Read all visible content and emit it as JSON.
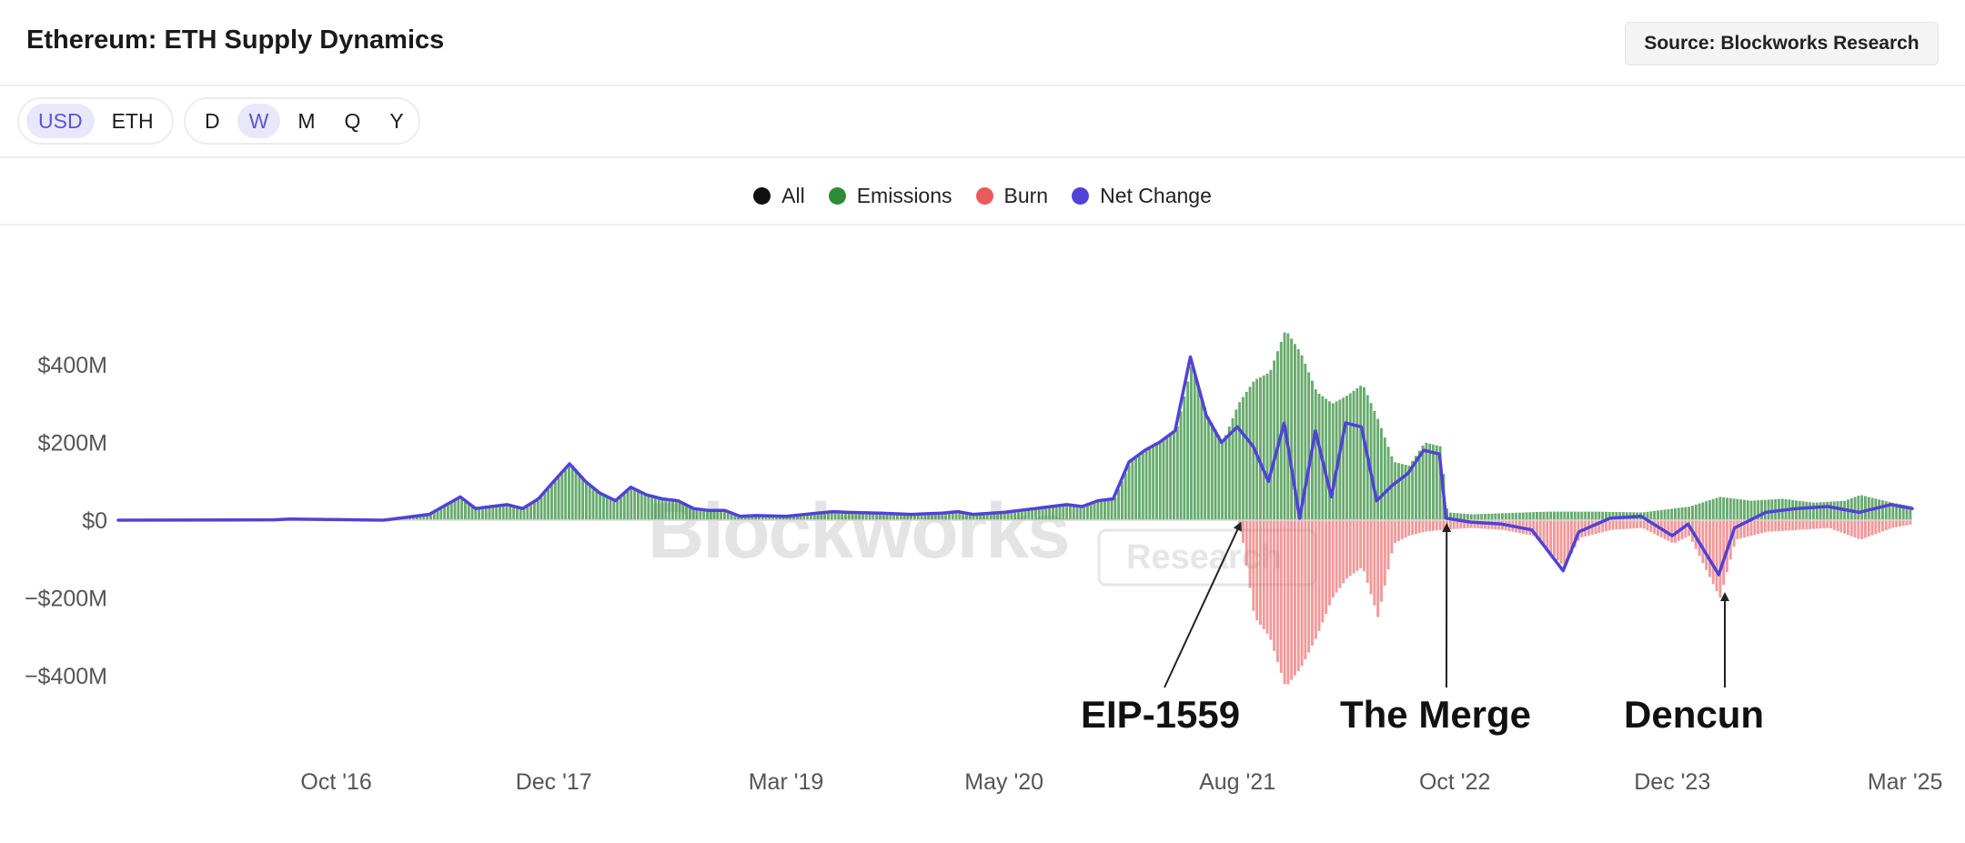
{
  "header": {
    "title": "Ethereum: ETH Supply Dynamics",
    "source_label": "Source: Blockworks Research"
  },
  "controls": {
    "units": [
      {
        "label": "USD",
        "active": true
      },
      {
        "label": "ETH",
        "active": false
      }
    ],
    "periods": [
      {
        "label": "D",
        "active": false
      },
      {
        "label": "W",
        "active": true
      },
      {
        "label": "M",
        "active": false
      },
      {
        "label": "Q",
        "active": false
      },
      {
        "label": "Y",
        "active": false
      }
    ]
  },
  "legend": [
    {
      "label": "All",
      "color": "#111111"
    },
    {
      "label": "Emissions",
      "color": "#2e8b36"
    },
    {
      "label": "Burn",
      "color": "#ea5a5a"
    },
    {
      "label": "Net Change",
      "color": "#5142d6"
    }
  ],
  "watermark": {
    "brand": "Blockworks",
    "sub": "Research"
  },
  "chart_data": {
    "type": "bar",
    "title": "Ethereum: ETH Supply Dynamics",
    "unit": "USD (millions)",
    "ylim": [
      -450,
      520
    ],
    "y_ticks": [
      {
        "value": 400,
        "label": "$400M"
      },
      {
        "value": 200,
        "label": "$200M"
      },
      {
        "value": 0,
        "label": "$0"
      },
      {
        "value": -200,
        "label": "−$200M"
      },
      {
        "value": -400,
        "label": "−$400M"
      }
    ],
    "x_range": [
      "2015-08-01",
      "2025-03-15"
    ],
    "x_ticks": [
      {
        "date": "2016-10-01",
        "label": "Oct '16"
      },
      {
        "date": "2017-12-01",
        "label": "Dec '17"
      },
      {
        "date": "2019-03-01",
        "label": "Mar '19"
      },
      {
        "date": "2020-05-01",
        "label": "May '20"
      },
      {
        "date": "2021-08-01",
        "label": "Aug '21"
      },
      {
        "date": "2022-10-01",
        "label": "Oct '22"
      },
      {
        "date": "2023-12-01",
        "label": "Dec '23"
      },
      {
        "date": "2025-03-01",
        "label": "Mar '25"
      }
    ],
    "series": [
      {
        "name": "Emissions",
        "color": "#2e8b36",
        "points": [
          [
            "2015-08-01",
            0
          ],
          [
            "2016-06-01",
            1
          ],
          [
            "2016-07-01",
            3
          ],
          [
            "2017-01-01",
            0
          ],
          [
            "2017-02-01",
            5
          ],
          [
            "2017-04-01",
            15
          ],
          [
            "2017-06-01",
            60
          ],
          [
            "2017-07-01",
            30
          ],
          [
            "2017-08-01",
            35
          ],
          [
            "2017-09-01",
            40
          ],
          [
            "2017-10-01",
            30
          ],
          [
            "2017-11-01",
            55
          ],
          [
            "2017-12-01",
            100
          ],
          [
            "2018-01-01",
            145
          ],
          [
            "2018-02-01",
            100
          ],
          [
            "2018-03-01",
            70
          ],
          [
            "2018-04-01",
            50
          ],
          [
            "2018-05-01",
            85
          ],
          [
            "2018-06-01",
            65
          ],
          [
            "2018-07-01",
            55
          ],
          [
            "2018-08-01",
            50
          ],
          [
            "2018-09-01",
            30
          ],
          [
            "2018-10-01",
            25
          ],
          [
            "2018-11-01",
            25
          ],
          [
            "2018-12-01",
            10
          ],
          [
            "2019-01-01",
            12
          ],
          [
            "2019-03-01",
            10
          ],
          [
            "2019-05-01",
            18
          ],
          [
            "2019-06-01",
            22
          ],
          [
            "2019-07-01",
            20
          ],
          [
            "2019-09-01",
            18
          ],
          [
            "2019-11-01",
            15
          ],
          [
            "2020-01-01",
            18
          ],
          [
            "2020-02-01",
            22
          ],
          [
            "2020-03-01",
            15
          ],
          [
            "2020-05-01",
            20
          ],
          [
            "2020-07-01",
            30
          ],
          [
            "2020-08-01",
            35
          ],
          [
            "2020-09-01",
            40
          ],
          [
            "2020-10-01",
            35
          ],
          [
            "2020-11-01",
            50
          ],
          [
            "2020-12-01",
            55
          ],
          [
            "2021-01-01",
            150
          ],
          [
            "2021-02-01",
            180
          ],
          [
            "2021-03-01",
            200
          ],
          [
            "2021-04-01",
            230
          ],
          [
            "2021-05-01",
            400
          ],
          [
            "2021-06-01",
            270
          ],
          [
            "2021-07-01",
            200
          ],
          [
            "2021-08-01",
            300
          ],
          [
            "2021-09-01",
            360
          ],
          [
            "2021-10-01",
            380
          ],
          [
            "2021-11-01",
            490
          ],
          [
            "2021-12-01",
            430
          ],
          [
            "2022-01-01",
            330
          ],
          [
            "2022-02-01",
            300
          ],
          [
            "2022-03-01",
            320
          ],
          [
            "2022-04-01",
            350
          ],
          [
            "2022-05-01",
            260
          ],
          [
            "2022-06-01",
            150
          ],
          [
            "2022-07-01",
            140
          ],
          [
            "2022-08-01",
            200
          ],
          [
            "2022-09-01",
            190
          ],
          [
            "2022-09-14",
            20
          ],
          [
            "2022-11-01",
            15
          ],
          [
            "2023-01-01",
            18
          ],
          [
            "2023-04-01",
            22
          ],
          [
            "2023-07-01",
            22
          ],
          [
            "2023-10-01",
            20
          ],
          [
            "2024-01-01",
            35
          ],
          [
            "2024-03-01",
            60
          ],
          [
            "2024-05-01",
            50
          ],
          [
            "2024-07-01",
            55
          ],
          [
            "2024-09-01",
            45
          ],
          [
            "2024-11-01",
            50
          ],
          [
            "2024-12-01",
            65
          ],
          [
            "2025-02-01",
            45
          ],
          [
            "2025-03-15",
            35
          ]
        ]
      },
      {
        "name": "Burn",
        "color": "#ea5a5a",
        "points": [
          [
            "2015-08-01",
            0
          ],
          [
            "2021-07-31",
            0
          ],
          [
            "2021-08-10",
            -60
          ],
          [
            "2021-09-01",
            -250
          ],
          [
            "2021-10-01",
            -300
          ],
          [
            "2021-11-01",
            -430
          ],
          [
            "2021-12-01",
            -380
          ],
          [
            "2022-01-01",
            -300
          ],
          [
            "2022-02-01",
            -200
          ],
          [
            "2022-03-01",
            -150
          ],
          [
            "2022-04-01",
            -120
          ],
          [
            "2022-05-01",
            -250
          ],
          [
            "2022-06-01",
            -60
          ],
          [
            "2022-07-01",
            -40
          ],
          [
            "2022-08-01",
            -30
          ],
          [
            "2022-09-01",
            -25
          ],
          [
            "2022-11-01",
            -20
          ],
          [
            "2023-01-01",
            -25
          ],
          [
            "2023-03-01",
            -40
          ],
          [
            "2023-05-01",
            -120
          ],
          [
            "2023-06-01",
            -45
          ],
          [
            "2023-08-01",
            -25
          ],
          [
            "2023-10-01",
            -20
          ],
          [
            "2023-12-01",
            -60
          ],
          [
            "2024-01-01",
            -40
          ],
          [
            "2024-03-01",
            -200
          ],
          [
            "2024-04-01",
            -50
          ],
          [
            "2024-06-01",
            -30
          ],
          [
            "2024-08-01",
            -25
          ],
          [
            "2024-10-01",
            -20
          ],
          [
            "2024-12-01",
            -50
          ],
          [
            "2025-02-01",
            -20
          ],
          [
            "2025-03-15",
            -10
          ]
        ]
      },
      {
        "name": "Net Change",
        "color": "#5142d6",
        "points": [
          [
            "2015-08-01",
            0
          ],
          [
            "2016-06-01",
            1
          ],
          [
            "2016-07-01",
            3
          ],
          [
            "2017-01-01",
            0
          ],
          [
            "2017-02-01",
            5
          ],
          [
            "2017-04-01",
            15
          ],
          [
            "2017-06-01",
            60
          ],
          [
            "2017-07-01",
            30
          ],
          [
            "2017-08-01",
            35
          ],
          [
            "2017-09-01",
            40
          ],
          [
            "2017-10-01",
            30
          ],
          [
            "2017-11-01",
            55
          ],
          [
            "2017-12-01",
            100
          ],
          [
            "2018-01-01",
            145
          ],
          [
            "2018-02-01",
            100
          ],
          [
            "2018-03-01",
            70
          ],
          [
            "2018-04-01",
            50
          ],
          [
            "2018-05-01",
            85
          ],
          [
            "2018-06-01",
            65
          ],
          [
            "2018-07-01",
            55
          ],
          [
            "2018-08-01",
            50
          ],
          [
            "2018-09-01",
            30
          ],
          [
            "2018-10-01",
            25
          ],
          [
            "2018-11-01",
            25
          ],
          [
            "2018-12-01",
            10
          ],
          [
            "2019-01-01",
            12
          ],
          [
            "2019-03-01",
            10
          ],
          [
            "2019-05-01",
            18
          ],
          [
            "2019-06-01",
            22
          ],
          [
            "2019-07-01",
            20
          ],
          [
            "2019-09-01",
            18
          ],
          [
            "2019-11-01",
            15
          ],
          [
            "2020-01-01",
            18
          ],
          [
            "2020-02-01",
            22
          ],
          [
            "2020-03-01",
            15
          ],
          [
            "2020-05-01",
            20
          ],
          [
            "2020-07-01",
            30
          ],
          [
            "2020-08-01",
            35
          ],
          [
            "2020-09-01",
            40
          ],
          [
            "2020-10-01",
            35
          ],
          [
            "2020-11-01",
            50
          ],
          [
            "2020-12-01",
            55
          ],
          [
            "2021-01-01",
            150
          ],
          [
            "2021-02-01",
            180
          ],
          [
            "2021-03-01",
            200
          ],
          [
            "2021-04-01",
            230
          ],
          [
            "2021-05-01",
            420
          ],
          [
            "2021-06-01",
            270
          ],
          [
            "2021-07-01",
            200
          ],
          [
            "2021-08-01",
            240
          ],
          [
            "2021-09-01",
            190
          ],
          [
            "2021-10-01",
            100
          ],
          [
            "2021-11-01",
            250
          ],
          [
            "2021-12-01",
            5
          ],
          [
            "2022-01-01",
            230
          ],
          [
            "2022-02-01",
            60
          ],
          [
            "2022-03-01",
            250
          ],
          [
            "2022-04-01",
            240
          ],
          [
            "2022-05-01",
            50
          ],
          [
            "2022-06-01",
            90
          ],
          [
            "2022-07-01",
            120
          ],
          [
            "2022-08-01",
            180
          ],
          [
            "2022-09-01",
            170
          ],
          [
            "2022-09-14",
            5
          ],
          [
            "2022-11-01",
            -5
          ],
          [
            "2023-01-01",
            -10
          ],
          [
            "2023-03-01",
            -25
          ],
          [
            "2023-05-01",
            -130
          ],
          [
            "2023-06-01",
            -30
          ],
          [
            "2023-08-01",
            5
          ],
          [
            "2023-10-01",
            10
          ],
          [
            "2023-12-01",
            -40
          ],
          [
            "2024-01-01",
            -10
          ],
          [
            "2024-03-01",
            -140
          ],
          [
            "2024-04-01",
            -20
          ],
          [
            "2024-06-01",
            20
          ],
          [
            "2024-08-01",
            30
          ],
          [
            "2024-10-01",
            35
          ],
          [
            "2024-12-01",
            20
          ],
          [
            "2025-02-01",
            40
          ],
          [
            "2025-03-15",
            30
          ]
        ]
      }
    ],
    "annotations": [
      {
        "label": "EIP-1559",
        "date": "2021-08-05"
      },
      {
        "label": "The Merge",
        "date": "2022-09-15"
      },
      {
        "label": "Dencun",
        "date": "2024-03-13"
      }
    ]
  }
}
